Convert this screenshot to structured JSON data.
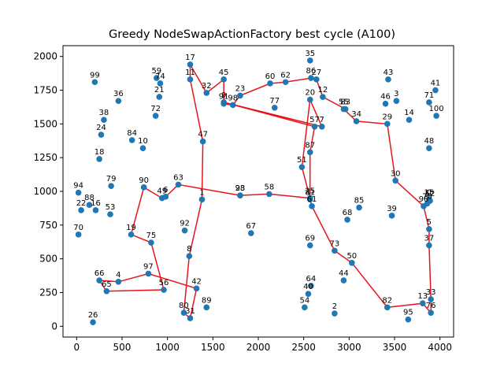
{
  "chart_data": {
    "type": "scatter",
    "title": "Greedy NodeSwapActionFactory best cycle (A100)",
    "xlabel": "",
    "ylabel": "",
    "xlim": [
      -150,
      4150
    ],
    "ylim": [
      -80,
      2080
    ],
    "x_ticks": [
      0,
      500,
      1000,
      1500,
      2000,
      2500,
      3000,
      3500,
      4000
    ],
    "y_ticks": [
      0,
      250,
      500,
      750,
      1000,
      1250,
      1500,
      1750,
      2000
    ],
    "grid": false,
    "point_color": "#1f77b4",
    "cycle_color": "#e8141c",
    "points": [
      {
        "id": "0",
        "x": 3880,
        "y": 940
      },
      {
        "id": "1",
        "x": 1380,
        "y": 940
      },
      {
        "id": "2",
        "x": 2840,
        "y": 95
      },
      {
        "id": "3",
        "x": 3520,
        "y": 1670
      },
      {
        "id": "4",
        "x": 460,
        "y": 330
      },
      {
        "id": "5",
        "x": 3880,
        "y": 720
      },
      {
        "id": "6",
        "x": 980,
        "y": 960
      },
      {
        "id": "7",
        "x": 2700,
        "y": 1480
      },
      {
        "id": "8",
        "x": 1240,
        "y": 520
      },
      {
        "id": "9",
        "x": 1620,
        "y": 1660
      },
      {
        "id": "10",
        "x": 730,
        "y": 1320
      },
      {
        "id": "11",
        "x": 1250,
        "y": 1830
      },
      {
        "id": "12",
        "x": 2710,
        "y": 1700
      },
      {
        "id": "13",
        "x": 3810,
        "y": 170
      },
      {
        "id": "14",
        "x": 3660,
        "y": 1530
      },
      {
        "id": "15",
        "x": 3880,
        "y": 940
      },
      {
        "id": "16",
        "x": 210,
        "y": 860
      },
      {
        "id": "17",
        "x": 1250,
        "y": 1940
      },
      {
        "id": "18",
        "x": 250,
        "y": 1240
      },
      {
        "id": "19",
        "x": 600,
        "y": 680
      },
      {
        "id": "20",
        "x": 2570,
        "y": 1680
      },
      {
        "id": "21",
        "x": 910,
        "y": 1700
      },
      {
        "id": "22",
        "x": 50,
        "y": 860
      },
      {
        "id": "23",
        "x": 1800,
        "y": 1710
      },
      {
        "id": "24",
        "x": 270,
        "y": 1420
      },
      {
        "id": "25",
        "x": 2570,
        "y": 950
      },
      {
        "id": "26",
        "x": 180,
        "y": 30
      },
      {
        "id": "27",
        "x": 2640,
        "y": 1830
      },
      {
        "id": "28",
        "x": 1800,
        "y": 970
      },
      {
        "id": "29",
        "x": 3420,
        "y": 1500
      },
      {
        "id": "30",
        "x": 3510,
        "y": 1080
      },
      {
        "id": "31",
        "x": 1250,
        "y": 60
      },
      {
        "id": "32",
        "x": 1430,
        "y": 1730
      },
      {
        "id": "33",
        "x": 3900,
        "y": 200
      },
      {
        "id": "34",
        "x": 3080,
        "y": 1520
      },
      {
        "id": "35",
        "x": 2570,
        "y": 1970
      },
      {
        "id": "36",
        "x": 460,
        "y": 1670
      },
      {
        "id": "37",
        "x": 3880,
        "y": 600
      },
      {
        "id": "38",
        "x": 300,
        "y": 1530
      },
      {
        "id": "39",
        "x": 3470,
        "y": 820
      },
      {
        "id": "40",
        "x": 2550,
        "y": 240
      },
      {
        "id": "41",
        "x": 3950,
        "y": 1750
      },
      {
        "id": "42",
        "x": 1320,
        "y": 280
      },
      {
        "id": "43",
        "x": 3430,
        "y": 1830
      },
      {
        "id": "44",
        "x": 2940,
        "y": 340
      },
      {
        "id": "45",
        "x": 1620,
        "y": 1830
      },
      {
        "id": "46",
        "x": 3400,
        "y": 1650
      },
      {
        "id": "47",
        "x": 1390,
        "y": 1370
      },
      {
        "id": "48",
        "x": 3880,
        "y": 1320
      },
      {
        "id": "49",
        "x": 940,
        "y": 950
      },
      {
        "id": "50",
        "x": 3030,
        "y": 470
      },
      {
        "id": "51",
        "x": 2480,
        "y": 1180
      },
      {
        "id": "52",
        "x": 3890,
        "y": 930
      },
      {
        "id": "53",
        "x": 370,
        "y": 830
      },
      {
        "id": "54",
        "x": 2510,
        "y": 140
      },
      {
        "id": "55",
        "x": 2940,
        "y": 1610
      },
      {
        "id": "56",
        "x": 960,
        "y": 270
      },
      {
        "id": "57",
        "x": 2620,
        "y": 1480
      },
      {
        "id": "58",
        "x": 2120,
        "y": 980
      },
      {
        "id": "59",
        "x": 880,
        "y": 1840
      },
      {
        "id": "60",
        "x": 2130,
        "y": 1800
      },
      {
        "id": "61",
        "x": 2590,
        "y": 890
      },
      {
        "id": "62",
        "x": 2300,
        "y": 1810
      },
      {
        "id": "63",
        "x": 1120,
        "y": 1050
      },
      {
        "id": "64",
        "x": 2580,
        "y": 300
      },
      {
        "id": "65",
        "x": 330,
        "y": 260
      },
      {
        "id": "66",
        "x": 250,
        "y": 340
      },
      {
        "id": "67",
        "x": 1920,
        "y": 690
      },
      {
        "id": "68",
        "x": 2980,
        "y": 790
      },
      {
        "id": "69",
        "x": 2570,
        "y": 600
      },
      {
        "id": "70",
        "x": 20,
        "y": 680
      },
      {
        "id": "71",
        "x": 3880,
        "y": 1660
      },
      {
        "id": "72",
        "x": 870,
        "y": 1560
      },
      {
        "id": "73",
        "x": 2840,
        "y": 560
      },
      {
        "id": "74",
        "x": 920,
        "y": 1800
      },
      {
        "id": "75",
        "x": 820,
        "y": 620
      },
      {
        "id": "76",
        "x": 3900,
        "y": 100
      },
      {
        "id": "77",
        "x": 2180,
        "y": 1620
      },
      {
        "id": "78",
        "x": 3860,
        "y": 910
      },
      {
        "id": "79",
        "x": 380,
        "y": 1040
      },
      {
        "id": "80",
        "x": 1180,
        "y": 100
      },
      {
        "id": "81",
        "x": 2570,
        "y": 940
      },
      {
        "id": "82",
        "x": 3420,
        "y": 140
      },
      {
        "id": "83",
        "x": 2960,
        "y": 1610
      },
      {
        "id": "84",
        "x": 610,
        "y": 1380
      },
      {
        "id": "85",
        "x": 3110,
        "y": 880
      },
      {
        "id": "86",
        "x": 2580,
        "y": 1840
      },
      {
        "id": "87",
        "x": 2570,
        "y": 1290
      },
      {
        "id": "88",
        "x": 140,
        "y": 900
      },
      {
        "id": "89",
        "x": 1430,
        "y": 140
      },
      {
        "id": "90",
        "x": 740,
        "y": 1030
      },
      {
        "id": "91",
        "x": 1620,
        "y": 1650
      },
      {
        "id": "92",
        "x": 1190,
        "y": 710
      },
      {
        "id": "93",
        "x": 1800,
        "y": 970
      },
      {
        "id": "94",
        "x": 20,
        "y": 990
      },
      {
        "id": "95",
        "x": 3650,
        "y": 50
      },
      {
        "id": "96",
        "x": 3820,
        "y": 890
      },
      {
        "id": "97",
        "x": 790,
        "y": 390
      },
      {
        "id": "98",
        "x": 1720,
        "y": 1640
      },
      {
        "id": "99",
        "x": 200,
        "y": 1810
      },
      {
        "id": "100",
        "x": 3960,
        "y": 1560
      }
    ],
    "cycle": [
      "1",
      "47",
      "11",
      "17",
      "32",
      "45",
      "91",
      "98",
      "23",
      "60",
      "62",
      "86",
      "27",
      "12",
      "83",
      "55",
      "34",
      "29",
      "30",
      "96",
      "5",
      "37",
      "33",
      "76",
      "13",
      "82",
      "50",
      "73",
      "61",
      "81",
      "87",
      "57",
      "9",
      "7",
      "20",
      "51",
      "25",
      "58",
      "28",
      "93",
      "63",
      "6",
      "49",
      "90",
      "19",
      "75",
      "56",
      "65",
      "66",
      "4",
      "97",
      "42",
      "31",
      "80",
      "8",
      "1"
    ]
  }
}
